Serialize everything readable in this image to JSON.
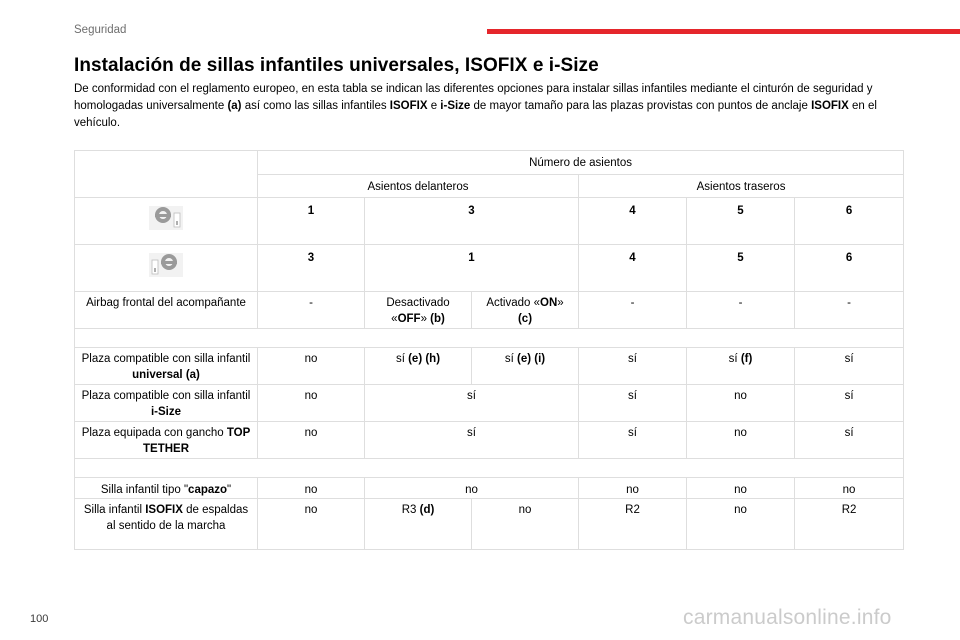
{
  "header": {
    "section": "Seguridad",
    "accent_color": "#e5262b"
  },
  "title": "Instalación de sillas infantiles universales, ISOFIX e i-Size",
  "intro": [
    {
      "t": "De conformidad con el reglamento europeo, en esta tabla se indican las diferentes opciones para instalar sillas infantiles mediante el cinturón de seguridad y homologadas universalmente ",
      "b": false
    },
    {
      "t": "(a)",
      "b": true
    },
    {
      "t": " así como las sillas infantiles ",
      "b": false
    },
    {
      "t": "ISOFIX",
      "b": true
    },
    {
      "t": " e ",
      "b": false
    },
    {
      "t": "i-Size",
      "b": true
    },
    {
      "t": " de mayor tamaño para las plazas provistas con puntos de anclaje ",
      "b": false
    },
    {
      "t": "ISOFIX",
      "b": true
    },
    {
      "t": " en el vehículo.",
      "b": false
    }
  ],
  "table": {
    "header_top": "Número de asientos",
    "front_group": "Asientos delanteros",
    "rear_group": "Asientos traseros",
    "rows": {
      "icon_lhd": {
        "icon": "steering-wheel-lhd-icon",
        "c1": "1",
        "c2": "3",
        "c3": "4",
        "c4": "5",
        "c5": "6"
      },
      "icon_rhd": {
        "icon": "steering-wheel-rhd-icon",
        "c1": "3",
        "c2": "1",
        "c3": "4",
        "c4": "5",
        "c5": "6"
      },
      "airbag": {
        "label": "Airbag frontal del acompañante",
        "c1": "-",
        "c2_pre": "Desactivado «",
        "c2_bold": "OFF",
        "c2_mid": "» ",
        "c2_tag": "(b)",
        "c3_pre": "Activado «",
        "c3_bold": "ON",
        "c3_mid": "» ",
        "c3_tag": "(c)",
        "c4": "-",
        "c5": "-",
        "c6": "-"
      },
      "universal": {
        "label_pre": "Plaza compatible con silla infantil ",
        "label_bold": "universal (a)",
        "c1": "no",
        "c2_pre": "sí ",
        "c2_bold": "(e) (h)",
        "c3_pre": "sí ",
        "c3_bold": "(e) (i)",
        "c4": "sí",
        "c5_pre": "sí ",
        "c5_bold": "(f)",
        "c6": "sí"
      },
      "isize": {
        "label_pre": "Plaza compatible con silla infantil ",
        "label_bold": "i-Size",
        "c1": "no",
        "c2": "sí",
        "c3": "sí",
        "c4": "no",
        "c5": "sí"
      },
      "tether": {
        "label_pre": "Plaza equipada con gancho ",
        "label_bold": "TOP TETHER",
        "c1": "no",
        "c2": "sí",
        "c3": "sí",
        "c4": "no",
        "c5": "sí"
      },
      "capazo": {
        "label_pre": "Silla infantil tipo \"",
        "label_bold": "capazo",
        "label_post": "\"",
        "c1": "no",
        "c2": "no",
        "c3": "no",
        "c4": "no",
        "c5": "no"
      },
      "isofix_rear": {
        "label_pre": "Silla infantil ",
        "label_bold": "ISOFIX",
        "label_post": " de espaldas al sentido de la marcha",
        "c1": "no",
        "c2_pre": "R3 ",
        "c2_bold": "(d)",
        "c3": "no",
        "c4": "R2",
        "c5": "no",
        "c6": "R2"
      }
    }
  },
  "footer": {
    "page_number": "100",
    "watermark": "carmanualsonline.info"
  }
}
